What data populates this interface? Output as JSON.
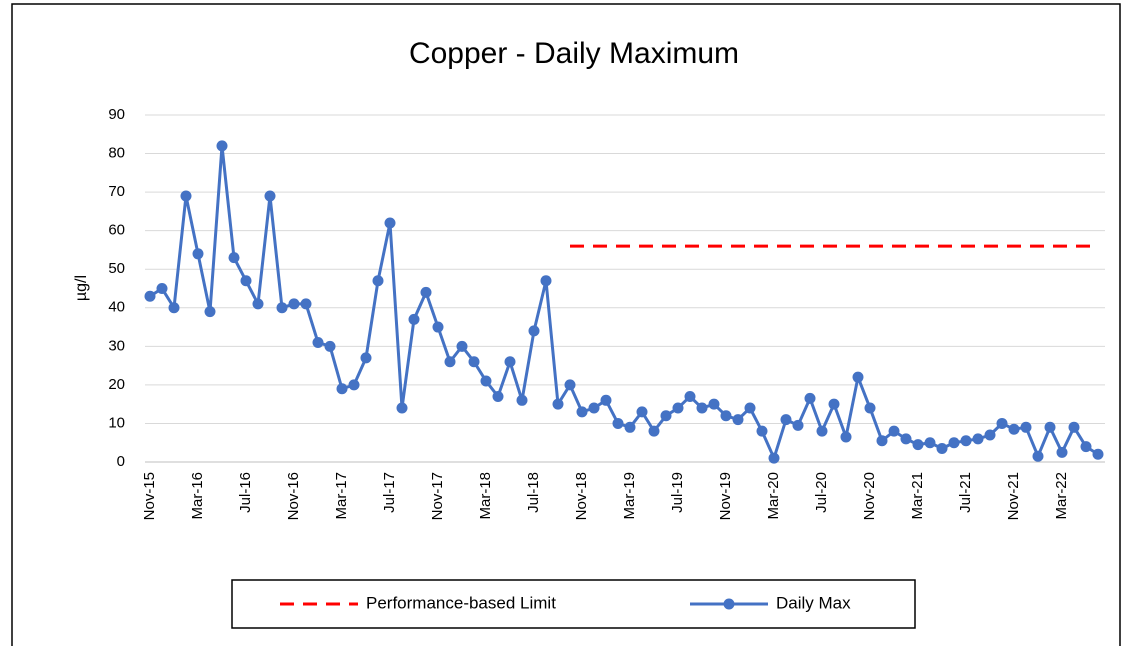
{
  "chart_data": {
    "type": "line",
    "title": "Copper - Daily Maximum",
    "y_label": "µg/l",
    "categories": [
      "Nov-15",
      null,
      null,
      null,
      "Mar-16",
      null,
      null,
      null,
      "Jul-16",
      null,
      null,
      null,
      "Nov-16",
      null,
      null,
      null,
      "Mar-17",
      null,
      null,
      null,
      "Jul-17",
      null,
      null,
      null,
      "Nov-17",
      null,
      null,
      null,
      "Mar-18",
      null,
      null,
      null,
      "Jul-18",
      null,
      null,
      null,
      "Nov-18",
      null,
      null,
      null,
      "Mar-19",
      null,
      null,
      null,
      "Jul-19",
      null,
      null,
      null,
      "Nov-19",
      null,
      null,
      null,
      "Mar-20",
      null,
      null,
      null,
      "Jul-20",
      null,
      null,
      null,
      "Nov-20",
      null,
      null,
      null,
      "Mar-21",
      null,
      null,
      null,
      "Jul-21",
      null,
      null,
      null,
      "Nov-21",
      null,
      null,
      null,
      "Mar-22",
      null,
      null,
      null
    ],
    "series": [
      {
        "name": "Performance-based Limit",
        "color": "#ff0000",
        "dashed": true,
        "markers": false,
        "values": [
          null,
          null,
          null,
          null,
          null,
          null,
          null,
          null,
          null,
          null,
          null,
          null,
          null,
          null,
          null,
          null,
          null,
          null,
          null,
          null,
          null,
          null,
          null,
          null,
          null,
          null,
          null,
          null,
          null,
          null,
          null,
          null,
          null,
          null,
          null,
          56,
          56,
          56,
          56,
          56,
          56,
          56,
          56,
          56,
          56,
          56,
          56,
          56,
          56,
          56,
          56,
          56,
          56,
          56,
          56,
          56,
          56,
          56,
          56,
          56,
          56,
          56,
          56,
          56,
          56,
          56,
          56,
          56,
          56,
          56,
          56,
          56,
          56,
          56,
          56,
          56,
          56,
          56,
          56,
          56
        ]
      },
      {
        "name": "Daily Max",
        "color": "#4472c4",
        "dashed": false,
        "markers": true,
        "values": [
          43,
          45,
          40,
          69,
          54,
          39,
          82,
          53,
          47,
          41,
          69,
          40,
          41,
          41,
          31,
          30,
          19,
          20,
          27,
          47,
          62,
          14,
          37,
          44,
          35,
          26,
          30,
          26,
          21,
          17,
          26,
          16,
          34,
          47,
          15,
          20,
          13,
          14,
          16,
          10,
          9,
          13,
          8,
          12,
          14,
          17,
          14,
          15,
          12,
          11,
          14,
          8,
          1,
          11,
          9.5,
          16.5,
          8,
          15,
          6.5,
          22,
          14,
          5.5,
          8,
          6,
          4.5,
          5,
          3.5,
          5,
          5.5,
          6,
          7,
          10,
          8.5,
          9,
          1.5,
          9,
          2.5,
          9,
          4,
          2
        ]
      }
    ],
    "ylim": [
      0,
      90
    ],
    "yticks": [
      0,
      10,
      20,
      30,
      40,
      50,
      60,
      70,
      80,
      90
    ],
    "grid": true,
    "legend": "bottom"
  }
}
